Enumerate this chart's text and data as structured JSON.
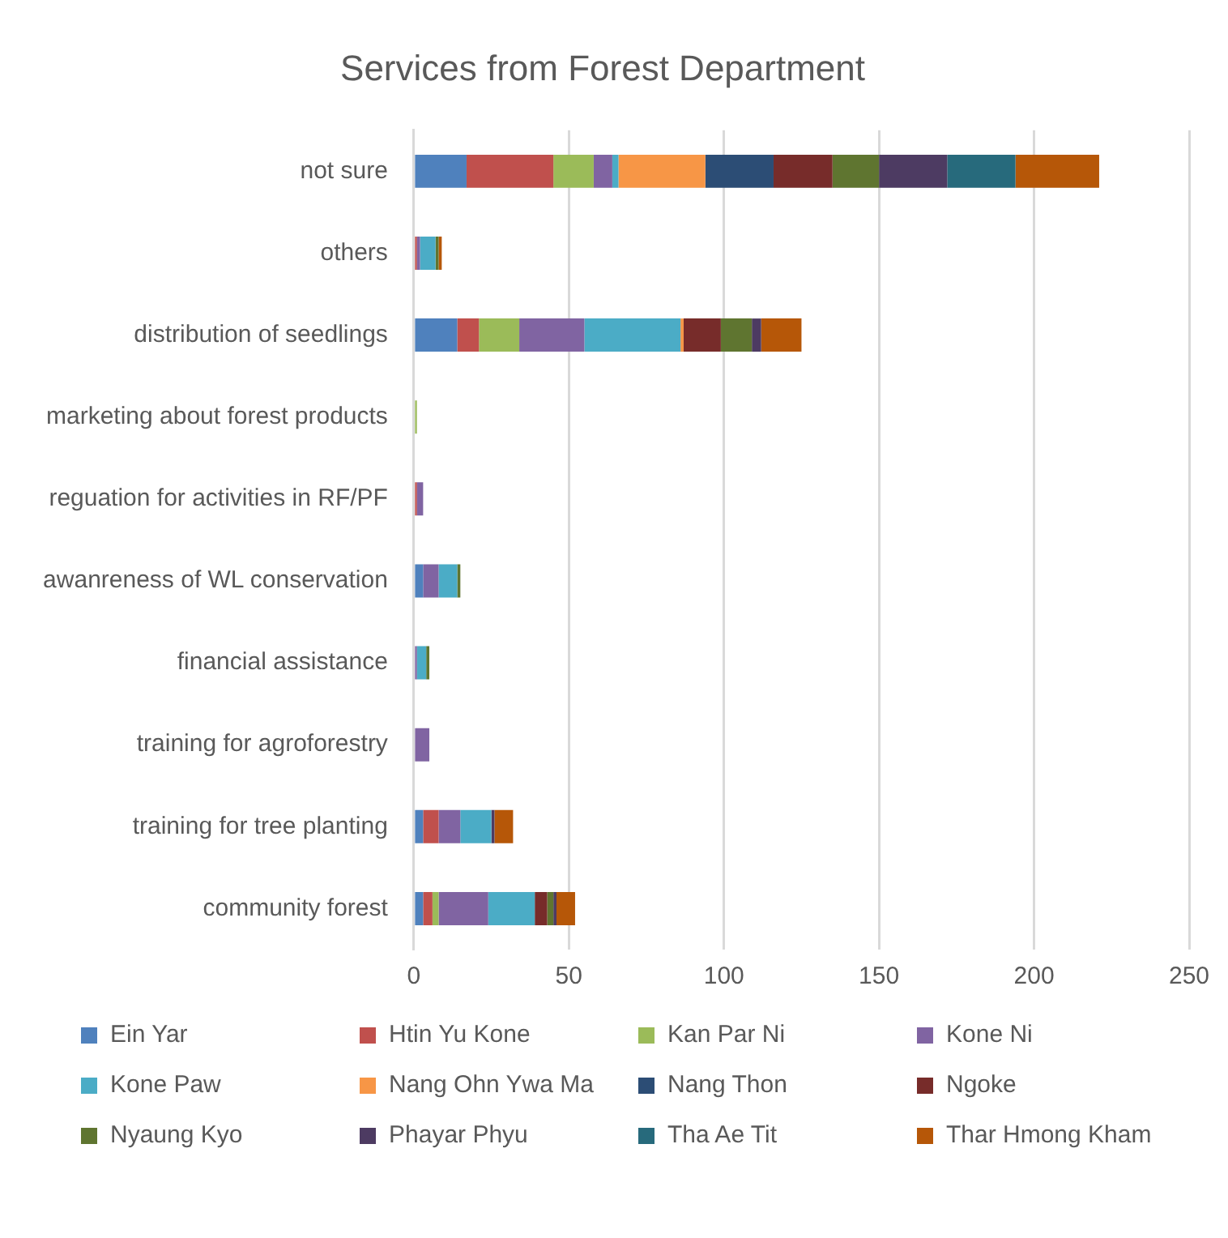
{
  "chart_data": {
    "type": "bar",
    "orientation": "horizontal",
    "stacked": true,
    "title": "Services from Forest Department",
    "categories": [
      "not sure",
      "others",
      "distribution of seedlings",
      "marketing about forest products",
      "reguation for activities in RF/PF",
      "awanreness of WL conservation",
      "financial assistance",
      "training for agroforestry",
      "training for tree planting",
      "community forest"
    ],
    "series": [
      {
        "name": "Ein Yar",
        "color": "#4f81bd",
        "values": [
          17,
          0,
          14,
          0,
          0,
          3,
          0,
          0,
          3,
          3
        ]
      },
      {
        "name": "Htin Yu Kone",
        "color": "#c0504d",
        "values": [
          28,
          1,
          7,
          0,
          1,
          0,
          0,
          0,
          5,
          3
        ]
      },
      {
        "name": "Kan Par Ni",
        "color": "#9bbb59",
        "values": [
          13,
          0,
          13,
          1,
          0,
          0,
          0,
          0,
          0,
          2
        ]
      },
      {
        "name": "Kone Ni",
        "color": "#8064a2",
        "values": [
          6,
          1,
          21,
          0,
          2,
          5,
          1,
          5,
          7,
          16
        ]
      },
      {
        "name": "Kone Paw",
        "color": "#4bacc6",
        "values": [
          2,
          5,
          31,
          0,
          0,
          6,
          3,
          0,
          10,
          15
        ]
      },
      {
        "name": "Nang Ohn Ywa Ma",
        "color": "#f79646",
        "values": [
          28,
          0,
          1,
          0,
          0,
          0,
          0,
          0,
          0,
          0
        ]
      },
      {
        "name": "Nang Thon",
        "color": "#2c4d75",
        "values": [
          22,
          0,
          0,
          0,
          0,
          0,
          0,
          0,
          0,
          0
        ]
      },
      {
        "name": "Ngoke",
        "color": "#772c2a",
        "values": [
          19,
          0,
          12,
          0,
          0,
          0,
          0,
          0,
          0,
          4
        ]
      },
      {
        "name": "Nyaung Kyo",
        "color": "#5f7530",
        "values": [
          15,
          1,
          10,
          0,
          0,
          1,
          1,
          0,
          0,
          2
        ]
      },
      {
        "name": "Phayar Phyu",
        "color": "#4d3b62",
        "values": [
          22,
          0,
          3,
          0,
          0,
          0,
          0,
          0,
          1,
          1
        ]
      },
      {
        "name": "Tha Ae Tit",
        "color": "#276a7c",
        "values": [
          22,
          0,
          0,
          0,
          0,
          0,
          0,
          0,
          0,
          0
        ]
      },
      {
        "name": "Thar Hmong Kham",
        "color": "#b65708",
        "values": [
          27,
          1,
          13,
          0,
          0,
          0,
          0,
          0,
          6,
          6
        ]
      }
    ],
    "xlim": [
      0,
      250
    ],
    "xticks": [
      0,
      50,
      100,
      150,
      200,
      250
    ],
    "grid": "x",
    "legend": "bottom"
  }
}
